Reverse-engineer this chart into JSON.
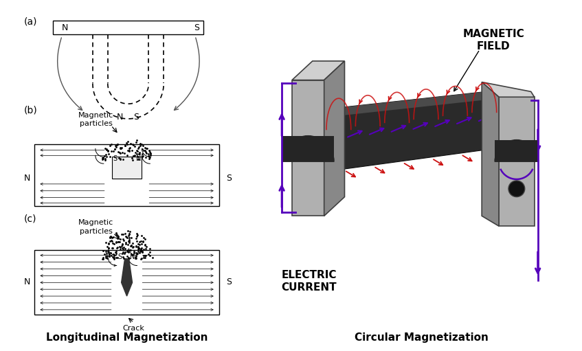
{
  "title_left": "Longitudinal Magnetization",
  "title_right": "Circular Magnetization",
  "label_magnetic_field": "MAGNETIC\nFIELD",
  "label_electric_current": "ELECTRIC\nCURRENT",
  "label_a": "(a)",
  "label_b": "(b)",
  "label_c": "(c)",
  "label_magnetic_particles_b": "Magnetic\nparticles",
  "label_magnetic_particles_c": "Magnetic\nparticles",
  "label_crack": "Crack",
  "bg_color": "#ffffff",
  "purple": "#5500bb",
  "red": "#cc1111",
  "dark_gray": "#3a3a3a",
  "med_gray": "#707070",
  "light_gray": "#aaaaaa",
  "lighter_gray": "#cccccc"
}
